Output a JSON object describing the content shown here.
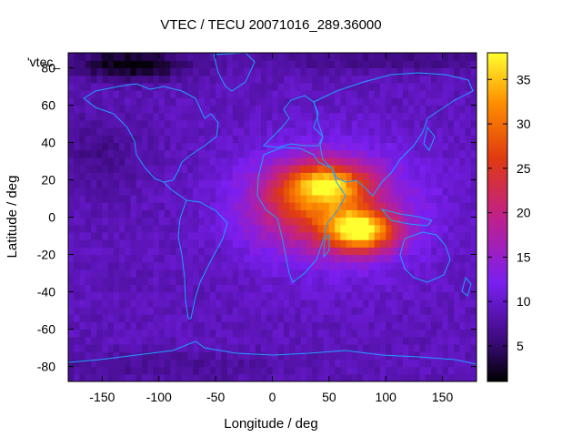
{
  "chart_data": {
    "type": "heatmap",
    "title": "VTEC / TECU 20071016_289.36000",
    "series_label": "'vtec_",
    "xlabel": "Longitude / deg",
    "ylabel": "Latitude / deg",
    "xlim": [
      -180,
      180
    ],
    "ylim": [
      -88,
      88
    ],
    "x_ticks": [
      -150,
      -100,
      -50,
      0,
      50,
      100,
      150
    ],
    "y_ticks": [
      -80,
      -60,
      -40,
      -20,
      0,
      20,
      40,
      60,
      80
    ],
    "colorbar": {
      "range": [
        1,
        38
      ],
      "ticks": [
        5,
        10,
        15,
        20,
        25,
        30,
        35
      ],
      "colormap": [
        "#000000",
        "#3a0a78",
        "#7a1ff0",
        "#c0208a",
        "#e03a10",
        "#ff9000",
        "#ffff30"
      ]
    },
    "grid": false,
    "features": {
      "background_vtec": 9,
      "peak_vtec": 37,
      "peak_location": {
        "lon": 78,
        "lat": -7
      },
      "secondary_max_location": {
        "lon": 50,
        "lat": 18
      },
      "minimum_location": {
        "lon": -125,
        "lat": 82
      }
    }
  }
}
